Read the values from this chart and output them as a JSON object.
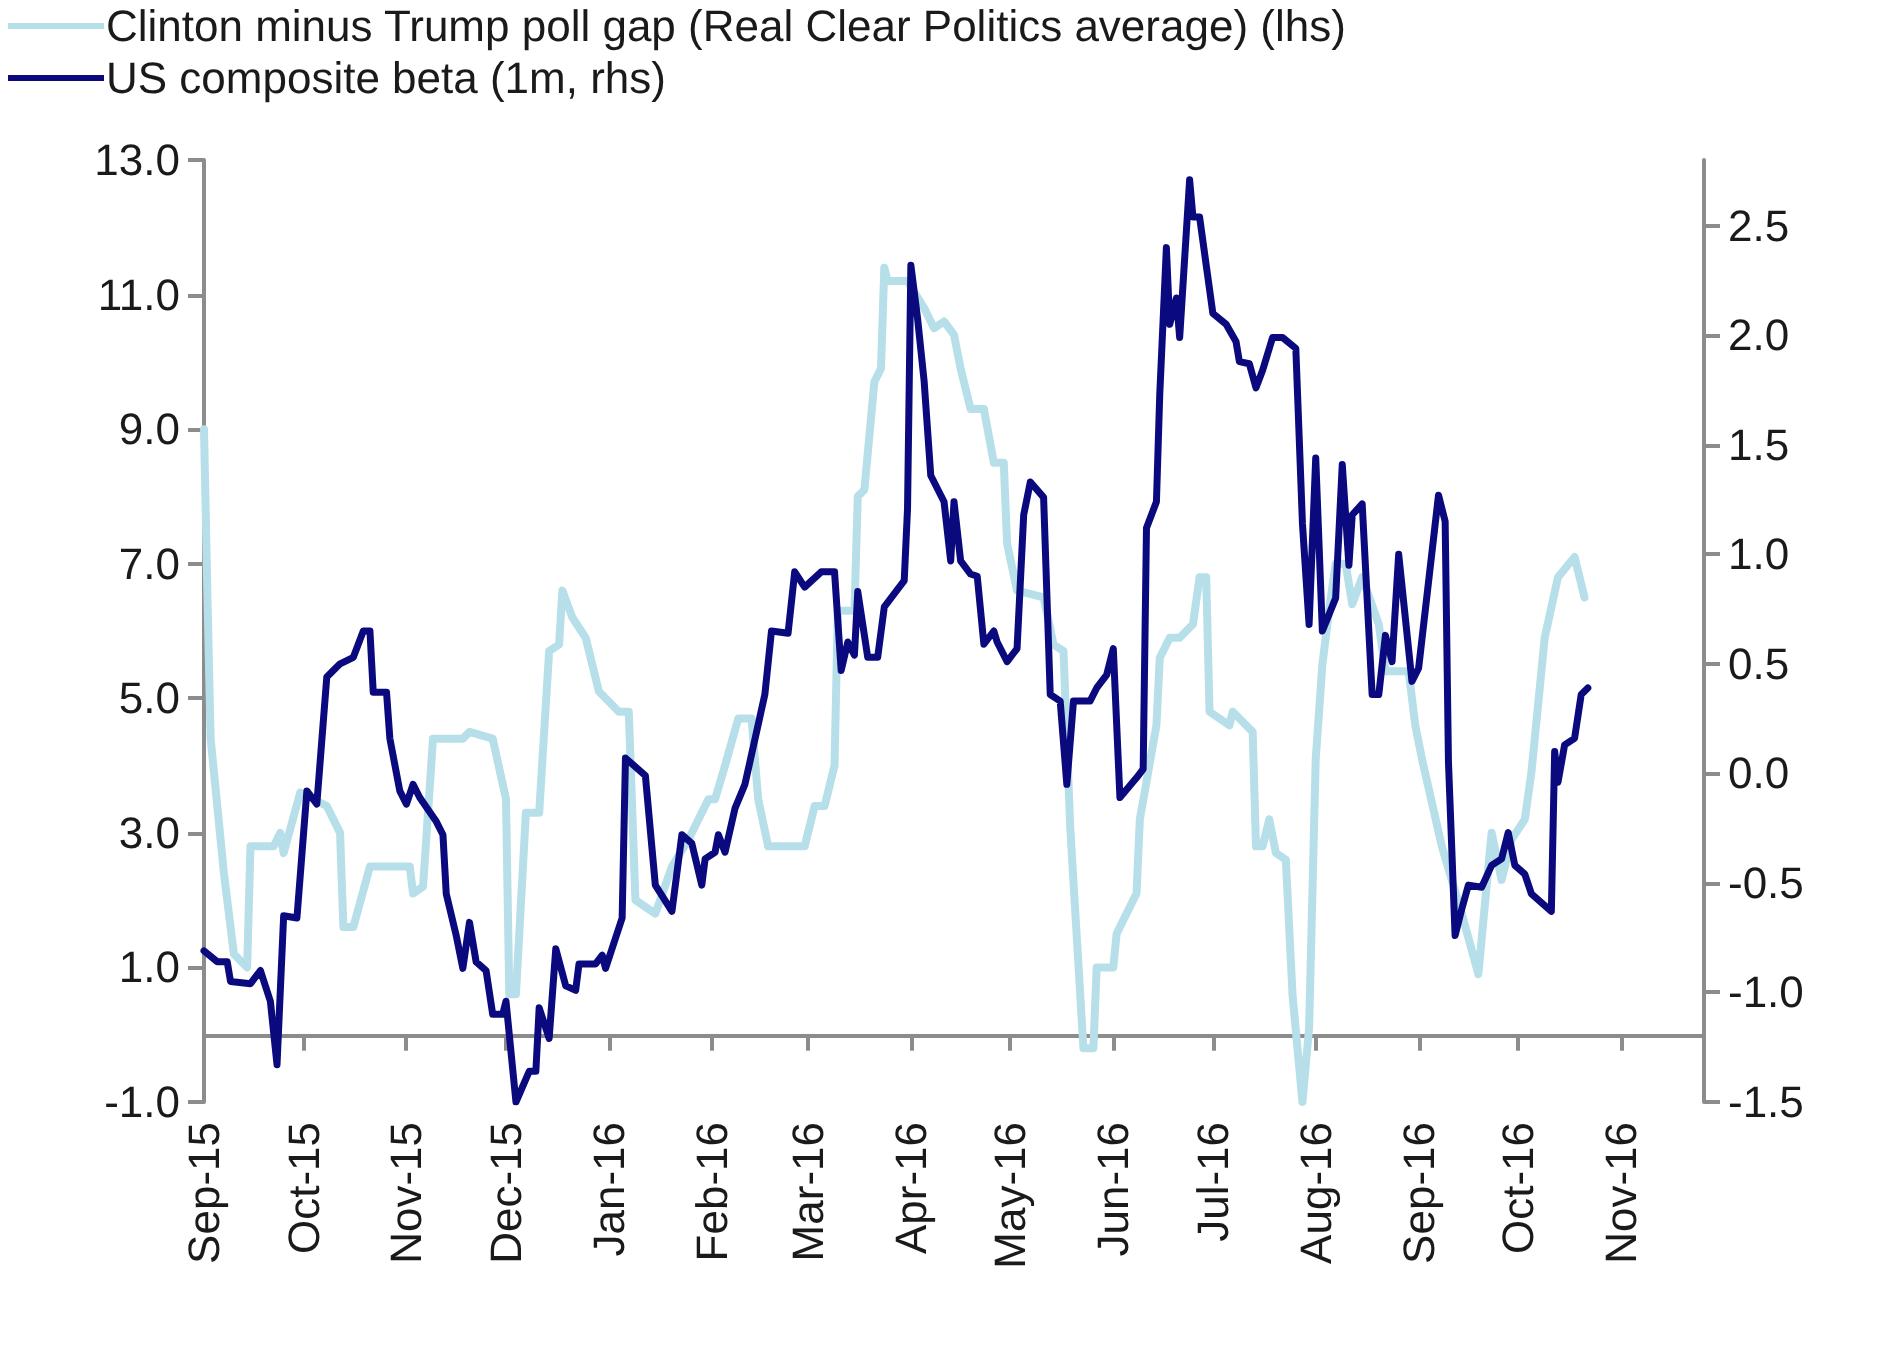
{
  "chart_data": {
    "type": "line",
    "legend": "top left",
    "grid": false,
    "marker": "none",
    "xlim": [
      "2015-09-01",
      "2016-11-26"
    ],
    "xticks": [
      {
        "value": "2015-09-01",
        "label": "Sep-15"
      },
      {
        "value": "2015-10-01",
        "label": "Oct-15"
      },
      {
        "value": "2015-11-01",
        "label": "Nov-15"
      },
      {
        "value": "2015-12-01",
        "label": "Dec-15"
      },
      {
        "value": "2016-01-01",
        "label": "Jan-16"
      },
      {
        "value": "2016-02-01",
        "label": "Feb-16"
      },
      {
        "value": "2016-03-01",
        "label": "Mar-16"
      },
      {
        "value": "2016-04-01",
        "label": "Apr-16"
      },
      {
        "value": "2016-05-01",
        "label": "May-16"
      },
      {
        "value": "2016-06-01",
        "label": "Jun-16"
      },
      {
        "value": "2016-07-01",
        "label": "Jul-16"
      },
      {
        "value": "2016-08-01",
        "label": "Aug-16"
      },
      {
        "value": "2016-09-01",
        "label": "Sep-16"
      },
      {
        "value": "2016-10-01",
        "label": "Oct-16"
      },
      {
        "value": "2016-11-01",
        "label": "Nov-16"
      }
    ],
    "ylim": [
      -1,
      13
    ],
    "yticks": [
      {
        "value": -1,
        "label": "-1.0"
      },
      {
        "value": 1,
        "label": "1.0"
      },
      {
        "value": 3,
        "label": "3.0"
      },
      {
        "value": 5,
        "label": "5.0"
      },
      {
        "value": 7,
        "label": "7.0"
      },
      {
        "value": 9,
        "label": "9.0"
      },
      {
        "value": 11,
        "label": "11.0"
      },
      {
        "value": 13,
        "label": "13.0"
      }
    ],
    "y2lim": [
      -1.5,
      2.8
    ],
    "y2ticks": [
      -1.5,
      {
        "value": -1,
        "label": "-1.0"
      },
      -0.5,
      {
        "value": 0,
        "label": "0.0"
      },
      0.5,
      {
        "value": 1,
        "label": "1.0"
      },
      1.5,
      {
        "value": 2,
        "label": "2.0"
      },
      2.5
    ],
    "series": [
      {
        "name": "Clinton minus Trump poll gap (Real Clear Politics average) (lhs)",
        "color": "#b7dfe9",
        "x": [
          "2015-09-01",
          "2015-09-02",
          "2015-09-03",
          "2015-09-07",
          "2015-09-10",
          "2015-09-14",
          "2015-09-15",
          "2015-09-22",
          "2015-09-24",
          "2015-09-25",
          "2015-09-30",
          "2015-10-08",
          "2015-10-12",
          "2015-10-13",
          "2015-10-16",
          "2015-10-21",
          "2015-11-02",
          "2015-11-03",
          "2015-11-06",
          "2015-11-09",
          "2015-11-18",
          "2015-11-20",
          "2015-11-27",
          "2015-12-01",
          "2015-12-02",
          "2015-12-04",
          "2015-12-07",
          "2015-12-11",
          "2015-12-14",
          "2015-12-17",
          "2015-12-18",
          "2015-12-21",
          "2015-12-25",
          "2015-12-29",
          "2016-01-04",
          "2016-01-07",
          "2016-01-09",
          "2016-01-15",
          "2016-01-20",
          "2016-01-25",
          "2016-01-31",
          "2016-02-02",
          "2016-02-05",
          "2016-02-09",
          "2016-02-13",
          "2016-02-15",
          "2016-02-18",
          "2016-02-29",
          "2016-03-03",
          "2016-03-06",
          "2016-03-09",
          "2016-03-10",
          "2016-03-15",
          "2016-03-16",
          "2016-03-18",
          "2016-03-21",
          "2016-03-23",
          "2016-03-24",
          "2016-03-25",
          "2016-03-31",
          "2016-04-05",
          "2016-04-08",
          "2016-04-11",
          "2016-04-14",
          "2016-04-16",
          "2016-04-19",
          "2016-04-23",
          "2016-04-26",
          "2016-04-29",
          "2016-04-30",
          "2016-05-03",
          "2016-05-11",
          "2016-05-14",
          "2016-05-17",
          "2016-05-19",
          "2016-05-23",
          "2016-05-26",
          "2016-05-27",
          "2016-06-01",
          "2016-06-02",
          "2016-06-05",
          "2016-06-08",
          "2016-06-09",
          "2016-06-14",
          "2016-06-15",
          "2016-06-18",
          "2016-06-21",
          "2016-06-25",
          "2016-06-27",
          "2016-06-29",
          "2016-06-30",
          "2016-07-03",
          "2016-07-06",
          "2016-07-07",
          "2016-07-13",
          "2016-07-14",
          "2016-07-16",
          "2016-07-18",
          "2016-07-20",
          "2016-07-23",
          "2016-07-25",
          "2016-07-28",
          "2016-07-30",
          "2016-08-01",
          "2016-08-03",
          "2016-08-05",
          "2016-08-07",
          "2016-08-10",
          "2016-08-12",
          "2016-08-15",
          "2016-08-20",
          "2016-08-22",
          "2016-08-29",
          "2016-08-31",
          "2016-09-02",
          "2016-09-08",
          "2016-09-14",
          "2016-09-19",
          "2016-09-23",
          "2016-09-26",
          "2016-09-29",
          "2016-10-03",
          "2016-10-05",
          "2016-10-09",
          "2016-10-13",
          "2016-10-18",
          "2016-10-21"
        ],
        "values": [
          9.0,
          6.6,
          4.4,
          2.4,
          1.2,
          1.0,
          2.8,
          2.8,
          3.0,
          2.7,
          3.6,
          3.4,
          3.0,
          1.6,
          1.6,
          2.5,
          2.5,
          2.1,
          2.2,
          4.4,
          4.4,
          4.5,
          4.4,
          3.5,
          0.6,
          0.6,
          3.3,
          3.3,
          5.7,
          5.8,
          6.6,
          6.2,
          5.9,
          5.1,
          4.8,
          4.8,
          2.0,
          1.8,
          2.5,
          2.9,
          3.5,
          3.5,
          4.0,
          4.7,
          4.7,
          3.5,
          2.8,
          2.8,
          3.4,
          3.4,
          4.0,
          6.3,
          6.3,
          8.0,
          8.1,
          9.7,
          9.9,
          11.4,
          11.2,
          11.2,
          10.8,
          10.5,
          10.6,
          10.4,
          9.9,
          9.3,
          9.3,
          8.5,
          8.5,
          7.3,
          6.6,
          6.5,
          5.8,
          5.7,
          3.1,
          -0.2,
          -0.2,
          1.0,
          1.0,
          1.5,
          1.8,
          2.1,
          3.2,
          4.6,
          5.6,
          5.9,
          5.9,
          6.1,
          6.8,
          6.8,
          4.8,
          4.7,
          4.6,
          4.8,
          4.5,
          2.8,
          2.8,
          3.2,
          2.7,
          2.6,
          0.6,
          -1.0,
          0.1,
          4.1,
          5.5,
          6.3,
          7.0,
          7.0,
          6.4,
          6.8,
          6.1,
          5.4,
          5.4,
          4.6,
          4.1,
          2.8,
          1.8,
          0.9,
          3.0,
          2.3,
          2.9,
          3.2,
          3.9,
          5.9,
          6.8,
          7.1,
          6.5
        ]
      },
      {
        "name": "US composite beta (1m, rhs)",
        "color": "#0a0a7e",
        "axis": "y2",
        "x": [
          "2015-09-01",
          "2015-09-05",
          "2015-09-08",
          "2015-09-09",
          "2015-09-15",
          "2015-09-18",
          "2015-09-21",
          "2015-09-23",
          "2015-09-25",
          "2015-09-29",
          "2015-10-02",
          "2015-10-05",
          "2015-10-08",
          "2015-10-12",
          "2015-10-16",
          "2015-10-19",
          "2015-10-21",
          "2015-10-22",
          "2015-10-26",
          "2015-10-27",
          "2015-10-30",
          "2015-11-01",
          "2015-11-03",
          "2015-11-05",
          "2015-11-10",
          "2015-11-12",
          "2015-11-13",
          "2015-11-16",
          "2015-11-18",
          "2015-11-20",
          "2015-11-22",
          "2015-11-25",
          "2015-11-27",
          "2015-11-30",
          "2015-12-01",
          "2015-12-04",
          "2015-12-08",
          "2015-12-10",
          "2015-12-11",
          "2015-12-14",
          "2015-12-16",
          "2015-12-19",
          "2015-12-22",
          "2015-12-23",
          "2015-12-28",
          "2015-12-30",
          "2015-12-31",
          "2016-01-05",
          "2016-01-06",
          "2016-01-12",
          "2016-01-15",
          "2016-01-20",
          "2016-01-23",
          "2016-01-26",
          "2016-01-29",
          "2016-01-30",
          "2016-02-02",
          "2016-02-03",
          "2016-02-05",
          "2016-02-08",
          "2016-02-11",
          "2016-02-17",
          "2016-02-19",
          "2016-02-24",
          "2016-02-26",
          "2016-02-29",
          "2016-03-05",
          "2016-03-09",
          "2016-03-11",
          "2016-03-13",
          "2016-03-15",
          "2016-03-16",
          "2016-03-19",
          "2016-03-22",
          "2016-03-24",
          "2016-03-30",
          "2016-03-31",
          "2016-04-01",
          "2016-04-03",
          "2016-04-05",
          "2016-04-07",
          "2016-04-11",
          "2016-04-13",
          "2016-04-14",
          "2016-04-16",
          "2016-04-19",
          "2016-04-21",
          "2016-04-23",
          "2016-04-26",
          "2016-04-27",
          "2016-04-30",
          "2016-05-03",
          "2016-05-05",
          "2016-05-07",
          "2016-05-11",
          "2016-05-13",
          "2016-05-16",
          "2016-05-18",
          "2016-05-20",
          "2016-05-25",
          "2016-05-27",
          "2016-05-30",
          "2016-06-01",
          "2016-06-03",
          "2016-06-08",
          "2016-06-10",
          "2016-06-11",
          "2016-06-14",
          "2016-06-15",
          "2016-06-17",
          "2016-06-18",
          "2016-06-20",
          "2016-06-21",
          "2016-06-24",
          "2016-06-25",
          "2016-06-27",
          "2016-06-29",
          "2016-07-01",
          "2016-07-05",
          "2016-07-08",
          "2016-07-09",
          "2016-07-12",
          "2016-07-14",
          "2016-07-16",
          "2016-07-19",
          "2016-07-22",
          "2016-07-26",
          "2016-07-28",
          "2016-07-30",
          "2016-08-01",
          "2016-08-03",
          "2016-08-07",
          "2016-08-09",
          "2016-08-11",
          "2016-08-12",
          "2016-08-15",
          "2016-08-18",
          "2016-08-20",
          "2016-08-22",
          "2016-08-24",
          "2016-08-26",
          "2016-08-30",
          "2016-09-01",
          "2016-09-07",
          "2016-09-09",
          "2016-09-10",
          "2016-09-12",
          "2016-09-14",
          "2016-09-16",
          "2016-09-20",
          "2016-09-23",
          "2016-09-26",
          "2016-09-28",
          "2016-09-30",
          "2016-10-03",
          "2016-10-05",
          "2016-10-11",
          "2016-10-12",
          "2016-10-13",
          "2016-10-15",
          "2016-10-18",
          "2016-10-20",
          "2016-10-22"
        ],
        "values": [
          -0.81,
          -0.86,
          -0.86,
          -0.95,
          -0.96,
          -0.9,
          -1.04,
          -1.33,
          -0.65,
          -0.66,
          -0.08,
          -0.14,
          0.44,
          0.5,
          0.53,
          0.65,
          0.65,
          0.37,
          0.37,
          0.16,
          -0.08,
          -0.14,
          -0.05,
          -0.11,
          -0.22,
          -0.28,
          -0.55,
          -0.74,
          -0.89,
          -0.68,
          -0.86,
          -0.9,
          -1.1,
          -1.1,
          -1.04,
          -1.5,
          -1.36,
          -1.36,
          -1.07,
          -1.21,
          -0.8,
          -0.97,
          -0.99,
          -0.87,
          -0.87,
          -0.83,
          -0.89,
          -0.66,
          0.07,
          -0.01,
          -0.51,
          -0.63,
          -0.28,
          -0.32,
          -0.51,
          -0.39,
          -0.36,
          -0.28,
          -0.36,
          -0.16,
          -0.05,
          0.36,
          0.65,
          0.64,
          0.92,
          0.85,
          0.92,
          0.92,
          0.47,
          0.6,
          0.54,
          0.83,
          0.53,
          0.53,
          0.76,
          0.88,
          1.21,
          2.32,
          2.08,
          1.79,
          1.36,
          1.24,
          0.97,
          1.24,
          0.97,
          0.91,
          0.9,
          0.59,
          0.65,
          0.6,
          0.51,
          0.57,
          1.18,
          1.33,
          1.26,
          0.36,
          0.33,
          -0.05,
          0.33,
          0.33,
          0.39,
          0.45,
          0.57,
          -0.11,
          -0.02,
          0.02,
          1.12,
          1.24,
          1.73,
          2.4,
          2.05,
          2.17,
          1.99,
          2.71,
          2.54,
          2.54,
          2.32,
          2.1,
          2.05,
          1.97,
          1.88,
          1.87,
          1.76,
          1.84,
          1.99,
          1.99,
          1.94,
          1.14,
          0.68,
          1.44,
          0.65,
          0.8,
          1.41,
          0.95,
          1.18,
          1.23,
          0.36,
          0.36,
          0.63,
          0.51,
          1.0,
          0.42,
          0.48,
          1.27,
          1.15,
          0.05,
          -0.74,
          -0.62,
          -0.51,
          -0.52,
          -0.42,
          -0.39,
          -0.27,
          -0.42,
          -0.46,
          -0.55,
          -0.63,
          0.1,
          -0.04,
          0.13,
          0.16,
          0.36,
          0.39
        ]
      }
    ]
  }
}
